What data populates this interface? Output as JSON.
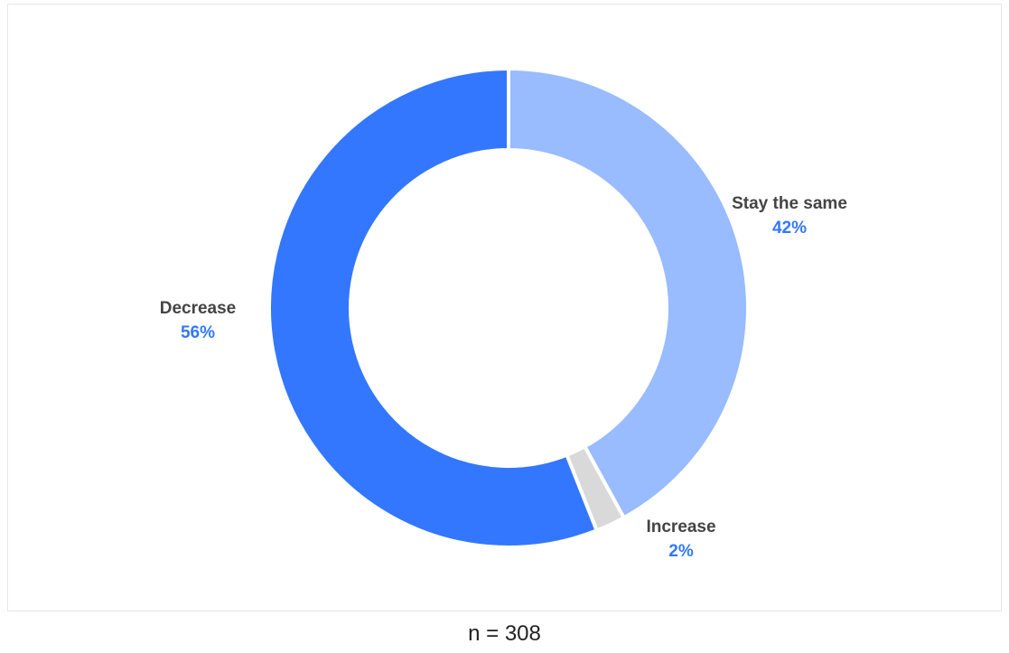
{
  "chart_data": {
    "type": "pie",
    "variant": "donut",
    "slices": [
      {
        "label": "Stay the same",
        "value": 42,
        "display": "42%",
        "color": "#99bbff"
      },
      {
        "label": "Increase",
        "value": 2,
        "display": "2%",
        "color": "#d9d9d9"
      },
      {
        "label": "Decrease",
        "value": 56,
        "display": "56%",
        "color": "#3377ff"
      }
    ],
    "label_color": "#444444",
    "value_color": "#3377ff"
  },
  "footnote": "n = 308"
}
